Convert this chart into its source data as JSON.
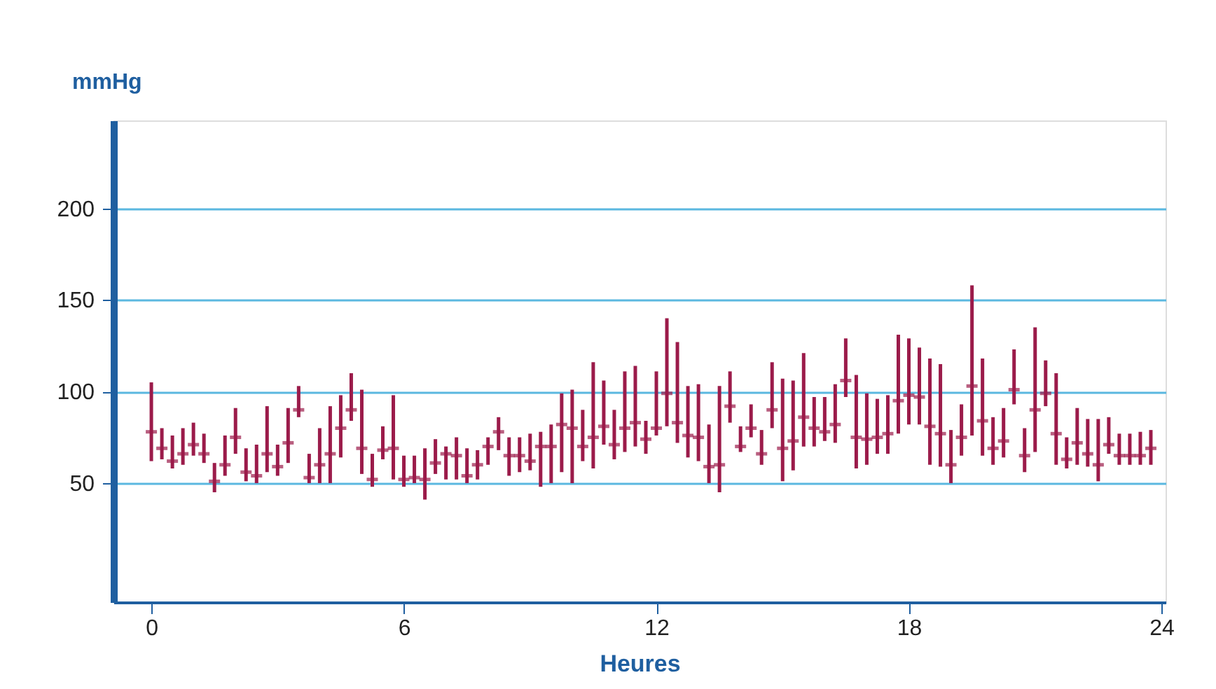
{
  "chart_data": {
    "type": "scatter",
    "ylabel": "mmHg",
    "xlabel": "Heures",
    "x": [
      0,
      0.25,
      0.5,
      0.75,
      1,
      1.25,
      1.5,
      1.75,
      2,
      2.25,
      2.5,
      2.75,
      3,
      3.25,
      3.5,
      3.75,
      4,
      4.25,
      4.5,
      4.75,
      5,
      5.25,
      5.5,
      5.75,
      6,
      6.25,
      6.5,
      6.75,
      7,
      7.25,
      7.5,
      7.75,
      8,
      8.25,
      8.5,
      8.75,
      9,
      9.25,
      9.5,
      9.75,
      10,
      10.25,
      10.5,
      10.75,
      11,
      11.25,
      11.5,
      11.75,
      12,
      12.25,
      12.5,
      12.75,
      13,
      13.25,
      13.5,
      13.75,
      14,
      14.25,
      14.5,
      14.75,
      15,
      15.25,
      15.5,
      15.75,
      16,
      16.25,
      16.5,
      16.75,
      17,
      17.25,
      17.5,
      17.75,
      18,
      18.25,
      18.5,
      18.75,
      19,
      19.25,
      19.5,
      19.75,
      20,
      20.25,
      20.5,
      20.75,
      21,
      21.25,
      21.5,
      21.75,
      22,
      22.25,
      22.5,
      22.75,
      23,
      23.25,
      23.5,
      23.75
    ],
    "values": [
      78,
      69,
      62,
      66,
      71,
      66,
      51,
      60,
      75,
      56,
      54,
      66,
      59,
      72,
      90,
      53,
      60,
      66,
      80,
      90,
      69,
      52,
      68,
      69,
      52,
      53,
      52,
      61,
      66,
      65,
      54,
      60,
      70,
      78,
      65,
      65,
      62,
      70,
      70,
      82,
      80,
      70,
      75,
      81,
      71,
      80,
      83,
      74,
      80,
      99,
      83,
      76,
      75,
      59,
      60,
      92,
      70,
      80,
      66,
      90,
      69,
      73,
      86,
      80,
      78,
      82,
      106,
      75,
      74,
      75,
      77,
      95,
      98,
      97,
      81,
      77,
      60,
      75,
      103,
      84,
      69,
      73,
      101,
      65,
      90,
      99,
      77,
      63,
      72,
      66,
      60,
      71,
      65,
      65,
      65,
      69
    ],
    "errors": [
      [
        62,
        105
      ],
      [
        63,
        80
      ],
      [
        58,
        76
      ],
      [
        60,
        80
      ],
      [
        65,
        83
      ],
      [
        61,
        77
      ],
      [
        45,
        61
      ],
      [
        54,
        76
      ],
      [
        66,
        91
      ],
      [
        51,
        69
      ],
      [
        50,
        71
      ],
      [
        56,
        92
      ],
      [
        54,
        71
      ],
      [
        61,
        91
      ],
      [
        86,
        103
      ],
      [
        50,
        66
      ],
      [
        50,
        80
      ],
      [
        50,
        92
      ],
      [
        64,
        98
      ],
      [
        84,
        110
      ],
      [
        55,
        101
      ],
      [
        48,
        66
      ],
      [
        63,
        81
      ],
      [
        52,
        98
      ],
      [
        48,
        65
      ],
      [
        50,
        65
      ],
      [
        41,
        69
      ],
      [
        55,
        74
      ],
      [
        52,
        70
      ],
      [
        52,
        75
      ],
      [
        50,
        69
      ],
      [
        52,
        68
      ],
      [
        60,
        75
      ],
      [
        68,
        86
      ],
      [
        54,
        75
      ],
      [
        56,
        75
      ],
      [
        57,
        77
      ],
      [
        48,
        78
      ],
      [
        50,
        82
      ],
      [
        56,
        99
      ],
      [
        50,
        101
      ],
      [
        62,
        90
      ],
      [
        58,
        116
      ],
      [
        71,
        106
      ],
      [
        63,
        90
      ],
      [
        67,
        111
      ],
      [
        70,
        114
      ],
      [
        66,
        84
      ],
      [
        76,
        111
      ],
      [
        81,
        140
      ],
      [
        72,
        127
      ],
      [
        64,
        103
      ],
      [
        62,
        104
      ],
      [
        50,
        82
      ],
      [
        45,
        103
      ],
      [
        83,
        111
      ],
      [
        67,
        81
      ],
      [
        75,
        93
      ],
      [
        60,
        79
      ],
      [
        80,
        116
      ],
      [
        51,
        107
      ],
      [
        57,
        106
      ],
      [
        70,
        121
      ],
      [
        70,
        97
      ],
      [
        73,
        97
      ],
      [
        72,
        104
      ],
      [
        97,
        129
      ],
      [
        58,
        109
      ],
      [
        60,
        99
      ],
      [
        66,
        96
      ],
      [
        66,
        98
      ],
      [
        77,
        131
      ],
      [
        82,
        129
      ],
      [
        82,
        124
      ],
      [
        60,
        118
      ],
      [
        59,
        115
      ],
      [
        50,
        79
      ],
      [
        65,
        93
      ],
      [
        76,
        158
      ],
      [
        65,
        118
      ],
      [
        60,
        86
      ],
      [
        64,
        91
      ],
      [
        93,
        123
      ],
      [
        56,
        80
      ],
      [
        67,
        135
      ],
      [
        92,
        117
      ],
      [
        60,
        110
      ],
      [
        58,
        75
      ],
      [
        60,
        91
      ],
      [
        59,
        85
      ],
      [
        51,
        85
      ],
      [
        66,
        86
      ],
      [
        60,
        77
      ],
      [
        60,
        77
      ],
      [
        60,
        78
      ],
      [
        60,
        79
      ]
    ],
    "color": "#9b1b4a",
    "xlim": [
      -0.9,
      24.1
    ],
    "ylim": [
      -15,
      248
    ],
    "xticks": [
      0,
      6,
      12,
      18,
      24
    ],
    "yticks": [
      50,
      100,
      150,
      200
    ],
    "grid": "y"
  }
}
